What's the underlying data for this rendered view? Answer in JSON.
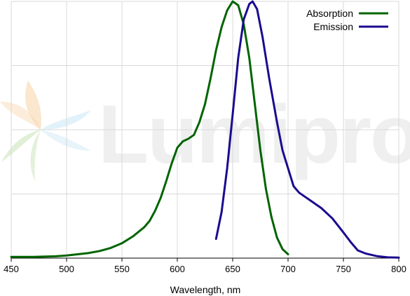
{
  "chart_data": {
    "type": "line",
    "xlabel": "Wavelength, nm",
    "ylabel": "",
    "xlim": [
      450,
      800
    ],
    "ylim": [
      0,
      1.0
    ],
    "x_ticks": [
      450,
      500,
      550,
      600,
      650,
      700,
      750,
      800
    ],
    "grid": true,
    "legend_position": "top-right",
    "watermark": "Lumiprobe",
    "series": [
      {
        "name": "Absorption",
        "color": "#006400",
        "points": [
          [
            450,
            0.005
          ],
          [
            470,
            0.005
          ],
          [
            490,
            0.007
          ],
          [
            500,
            0.01
          ],
          [
            510,
            0.015
          ],
          [
            520,
            0.02
          ],
          [
            530,
            0.028
          ],
          [
            540,
            0.04
          ],
          [
            550,
            0.058
          ],
          [
            560,
            0.085
          ],
          [
            570,
            0.12
          ],
          [
            575,
            0.145
          ],
          [
            580,
            0.185
          ],
          [
            585,
            0.235
          ],
          [
            590,
            0.3
          ],
          [
            595,
            0.37
          ],
          [
            600,
            0.43
          ],
          [
            605,
            0.455
          ],
          [
            610,
            0.465
          ],
          [
            615,
            0.48
          ],
          [
            620,
            0.53
          ],
          [
            625,
            0.6
          ],
          [
            630,
            0.7
          ],
          [
            635,
            0.81
          ],
          [
            640,
            0.9
          ],
          [
            645,
            0.965
          ],
          [
            650,
            1.0
          ],
          [
            655,
            0.985
          ],
          [
            660,
            0.91
          ],
          [
            665,
            0.78
          ],
          [
            670,
            0.6
          ],
          [
            675,
            0.42
          ],
          [
            680,
            0.27
          ],
          [
            685,
            0.16
          ],
          [
            690,
            0.08
          ],
          [
            695,
            0.035
          ],
          [
            700,
            0.015
          ]
        ]
      },
      {
        "name": "Emission",
        "color": "#1a0a8f",
        "points": [
          [
            635,
            0.075
          ],
          [
            640,
            0.18
          ],
          [
            645,
            0.35
          ],
          [
            650,
            0.56
          ],
          [
            655,
            0.78
          ],
          [
            660,
            0.93
          ],
          [
            665,
            0.99
          ],
          [
            668,
            1.0
          ],
          [
            672,
            0.97
          ],
          [
            677,
            0.86
          ],
          [
            683,
            0.7
          ],
          [
            690,
            0.53
          ],
          [
            695,
            0.42
          ],
          [
            700,
            0.35
          ],
          [
            705,
            0.28
          ],
          [
            710,
            0.255
          ],
          [
            715,
            0.24
          ],
          [
            720,
            0.225
          ],
          [
            730,
            0.195
          ],
          [
            740,
            0.155
          ],
          [
            750,
            0.1
          ],
          [
            757,
            0.06
          ],
          [
            763,
            0.03
          ],
          [
            770,
            0.018
          ],
          [
            780,
            0.008
          ],
          [
            790,
            0.003
          ],
          [
            800,
            0.002
          ]
        ]
      }
    ]
  }
}
